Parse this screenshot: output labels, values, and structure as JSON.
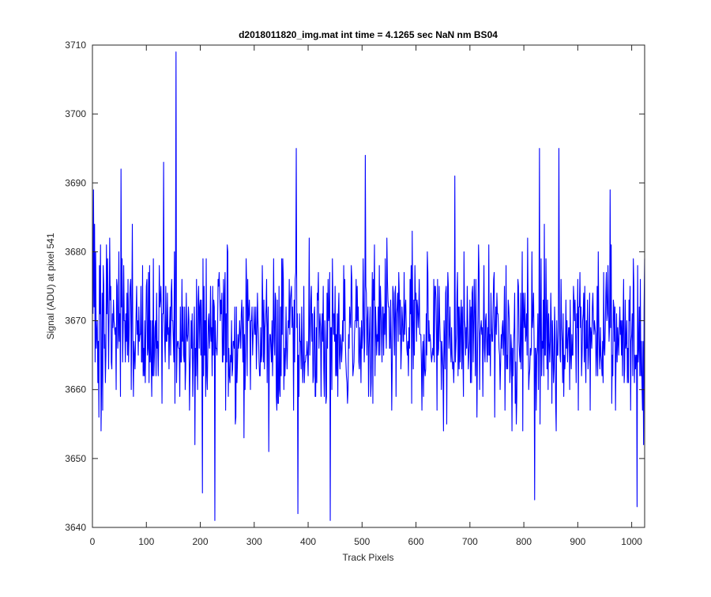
{
  "chart_data": {
    "type": "line",
    "title": "d2018011820_img.mat int time = 4.1265 sec  NaN nm BS04",
    "xlabel": "Track Pixels",
    "ylabel": "Signal (ADU) at pixel 541",
    "xlim": [
      0,
      1024
    ],
    "ylim": [
      3640,
      3710
    ],
    "xticks": [
      0,
      100,
      200,
      300,
      400,
      500,
      600,
      700,
      800,
      900,
      1000
    ],
    "yticks": [
      3640,
      3650,
      3660,
      3670,
      3680,
      3690,
      3700,
      3710
    ],
    "grid": false,
    "legend": "none",
    "line_color": "#0000ff",
    "series": [
      {
        "mean": 3668,
        "n_points": 1024,
        "x_start": 1,
        "x_step": 1,
        "noise_std": 8,
        "y_min": 3641,
        "y_max": 3709,
        "first_values": [
          3671,
          3689,
          3672,
          3684,
          3664,
          3680,
          3666
        ],
        "last_values": [
          3661,
          3657,
          3667,
          3652,
          3672,
          3679
        ],
        "notable_points": [
          {
            "x": 155,
            "y": 3709
          },
          {
            "x": 132,
            "y": 3693
          },
          {
            "x": 53,
            "y": 3692
          },
          {
            "x": 378,
            "y": 3695
          },
          {
            "x": 506,
            "y": 3694
          },
          {
            "x": 672,
            "y": 3691
          },
          {
            "x": 829,
            "y": 3695
          },
          {
            "x": 865,
            "y": 3695
          },
          {
            "x": 960,
            "y": 3689
          },
          {
            "x": 227,
            "y": 3641
          },
          {
            "x": 441,
            "y": 3641
          },
          {
            "x": 381,
            "y": 3642
          },
          {
            "x": 1010,
            "y": 3643
          },
          {
            "x": 204,
            "y": 3645
          },
          {
            "x": 820,
            "y": 3644
          }
        ]
      }
    ]
  }
}
